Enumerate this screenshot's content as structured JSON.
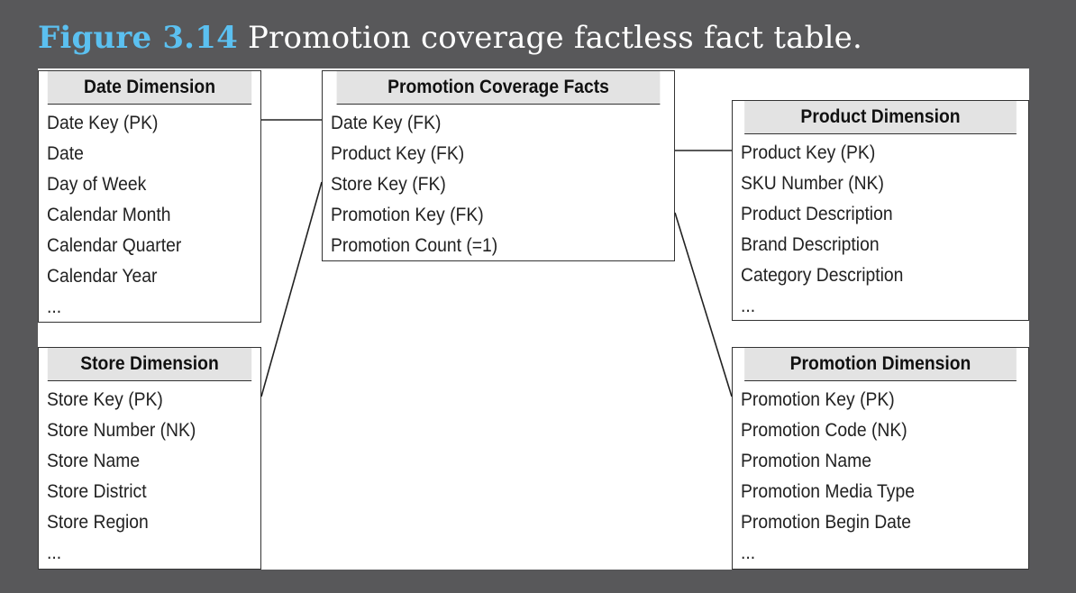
{
  "caption": {
    "figure_label": "Figure 3.14",
    "title": "Promotion coverage factless fact table."
  },
  "colors": {
    "background": "#58585a",
    "figure_label": "#5bc0f0",
    "header_fill": "#e3e3e3"
  },
  "tables": {
    "date": {
      "name": "Date Dimension",
      "attributes": [
        "Date Key (PK)",
        "Date",
        "Day of Week",
        "Calendar Month",
        "Calendar Quarter",
        "Calendar Year",
        "..."
      ]
    },
    "store": {
      "name": "Store Dimension",
      "attributes": [
        "Store Key (PK)",
        "Store Number (NK)",
        "Store Name",
        "Store District",
        "Store Region",
        "..."
      ]
    },
    "facts": {
      "name": "Promotion Coverage Facts",
      "attributes": [
        "Date Key (FK)",
        "Product Key (FK)",
        "Store Key (FK)",
        "Promotion Key (FK)",
        "Promotion Count (=1)"
      ]
    },
    "product": {
      "name": "Product Dimension",
      "attributes": [
        "Product Key (PK)",
        "SKU Number (NK)",
        "Product Description",
        "Brand Description",
        "Category Description",
        "..."
      ]
    },
    "promotion": {
      "name": "Promotion Dimension",
      "attributes": [
        "Promotion Key (PK)",
        "Promotion Code (NK)",
        "Promotion Name",
        "Promotion Media Type",
        "Promotion Begin Date",
        "..."
      ]
    }
  }
}
